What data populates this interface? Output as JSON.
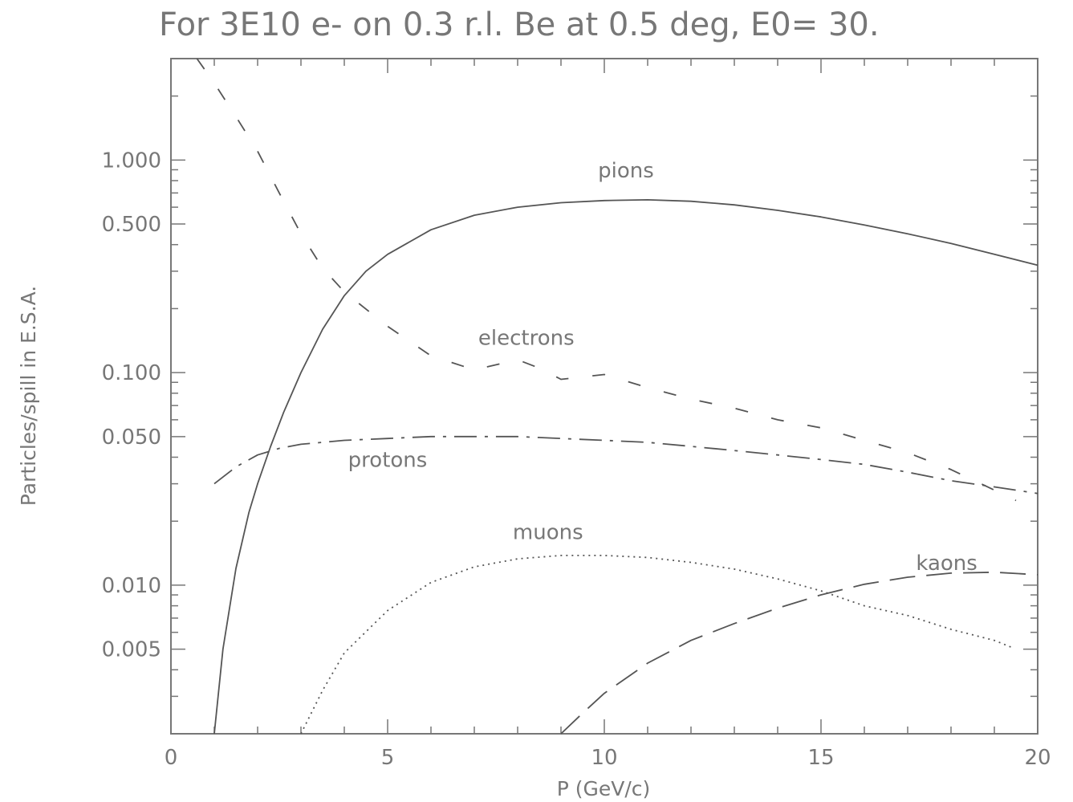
{
  "chart_data": {
    "type": "line",
    "title": "For 3E10 e- on 0.3 r.l. Be at 0.5 deg, E0= 30.",
    "xlabel": "P (GeV/c)",
    "ylabel": "Particles/spill in E.S.A.",
    "xlim": [
      0,
      20
    ],
    "ylim": [
      0.002,
      3.0
    ],
    "yscale": "log",
    "grid": false,
    "x_ticks": [
      0,
      5,
      10,
      15,
      20
    ],
    "x_tick_labels": [
      "0",
      "5",
      "10",
      "15",
      "20"
    ],
    "y_ticks": [
      0.005,
      0.01,
      0.05,
      0.1,
      0.5,
      1.0
    ],
    "y_tick_labels": [
      "0.005",
      "0.010",
      "0.050",
      "0.100",
      "0.500",
      "1.000"
    ],
    "series": [
      {
        "name": "pions",
        "style": "solid",
        "label_at": [
          10.5,
          0.83
        ],
        "x": [
          1.0,
          1.2,
          1.5,
          1.8,
          2.0,
          2.3,
          2.6,
          3.0,
          3.5,
          4.0,
          4.5,
          5.0,
          6.0,
          7.0,
          8.0,
          9.0,
          10.0,
          11.0,
          12.0,
          13.0,
          14.0,
          15.0,
          16.0,
          17.0,
          18.0,
          19.0,
          20.0
        ],
        "values": [
          0.002,
          0.005,
          0.012,
          0.022,
          0.03,
          0.045,
          0.065,
          0.1,
          0.16,
          0.23,
          0.3,
          0.36,
          0.47,
          0.55,
          0.6,
          0.63,
          0.645,
          0.65,
          0.64,
          0.615,
          0.58,
          0.54,
          0.495,
          0.45,
          0.405,
          0.36,
          0.32
        ]
      },
      {
        "name": "electrons",
        "style": "dashed",
        "label_at": [
          8.2,
          0.135
        ],
        "x": [
          0.6,
          1.0,
          1.5,
          2.0,
          2.5,
          3.0,
          3.5,
          4.0,
          5.0,
          6.0,
          7.0,
          8.0,
          8.5,
          9.0,
          10.0,
          11.0,
          12.0,
          13.0,
          14.0,
          15.0,
          16.0,
          17.0,
          18.0,
          19.0,
          19.5
        ],
        "values": [
          3.0,
          2.3,
          1.6,
          1.1,
          0.7,
          0.45,
          0.31,
          0.24,
          0.165,
          0.12,
          0.103,
          0.115,
          0.105,
          0.093,
          0.098,
          0.085,
          0.075,
          0.068,
          0.06,
          0.055,
          0.048,
          0.042,
          0.035,
          0.028,
          0.025
        ]
      },
      {
        "name": "protons",
        "style": "dash-dot",
        "label_at": [
          5.0,
          0.036
        ],
        "x": [
          1.0,
          1.5,
          2.0,
          2.5,
          3.0,
          4.0,
          5.0,
          6.0,
          7.0,
          8.0,
          9.0,
          10.0,
          11.0,
          12.0,
          13.0,
          14.0,
          15.0,
          16.0,
          17.0,
          18.0,
          19.0,
          20.0
        ],
        "values": [
          0.03,
          0.036,
          0.041,
          0.044,
          0.046,
          0.048,
          0.049,
          0.05,
          0.05,
          0.05,
          0.049,
          0.048,
          0.047,
          0.045,
          0.043,
          0.041,
          0.039,
          0.037,
          0.034,
          0.031,
          0.029,
          0.027
        ]
      },
      {
        "name": "muons",
        "style": "dotted",
        "label_at": [
          8.7,
          0.0165
        ],
        "x": [
          3.0,
          3.5,
          4.0,
          5.0,
          6.0,
          7.0,
          8.0,
          9.0,
          10.0,
          11.0,
          12.0,
          13.0,
          14.0,
          15.0,
          16.0,
          17.0,
          18.0,
          19.0,
          19.4
        ],
        "values": [
          0.002,
          0.0032,
          0.0048,
          0.0076,
          0.0103,
          0.0122,
          0.0133,
          0.0138,
          0.0138,
          0.0135,
          0.0128,
          0.0119,
          0.0107,
          0.0094,
          0.008,
          0.0072,
          0.0062,
          0.0055,
          0.0051
        ]
      },
      {
        "name": "kaons",
        "style": "long-dash",
        "label_at": [
          17.9,
          0.0118
        ],
        "x": [
          9.0,
          9.5,
          10.0,
          11.0,
          12.0,
          13.0,
          14.0,
          15.0,
          16.0,
          17.0,
          18.0,
          19.0,
          20.0
        ],
        "values": [
          0.002,
          0.0025,
          0.0031,
          0.0043,
          0.0055,
          0.0066,
          0.0078,
          0.009,
          0.0101,
          0.0109,
          0.0114,
          0.0115,
          0.0112
        ]
      }
    ]
  }
}
